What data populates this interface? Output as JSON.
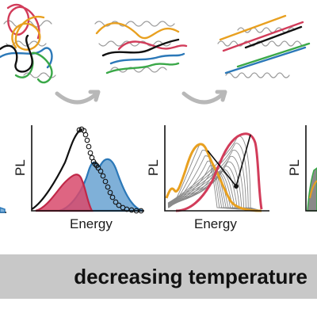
{
  "banner": {
    "text": "decreasing temperature"
  },
  "panels": [
    {
      "ylabel": "PL",
      "xlabel": "Energy"
    },
    {
      "ylabel": "PL",
      "xlabel": "Energy"
    },
    {
      "ylabel": "PL",
      "xlabel": ""
    }
  ],
  "colors": {
    "black": "#111111",
    "blue": "#2b78b8",
    "lightblue": "#7fb0d8",
    "crimson": "#d23c5a",
    "pink": "#e87a92",
    "orange": "#e8a020",
    "green": "#3aa848",
    "gray": "#9a9a9a",
    "arrow": "#b8b8b8",
    "banner": "#c8c8c8"
  }
}
